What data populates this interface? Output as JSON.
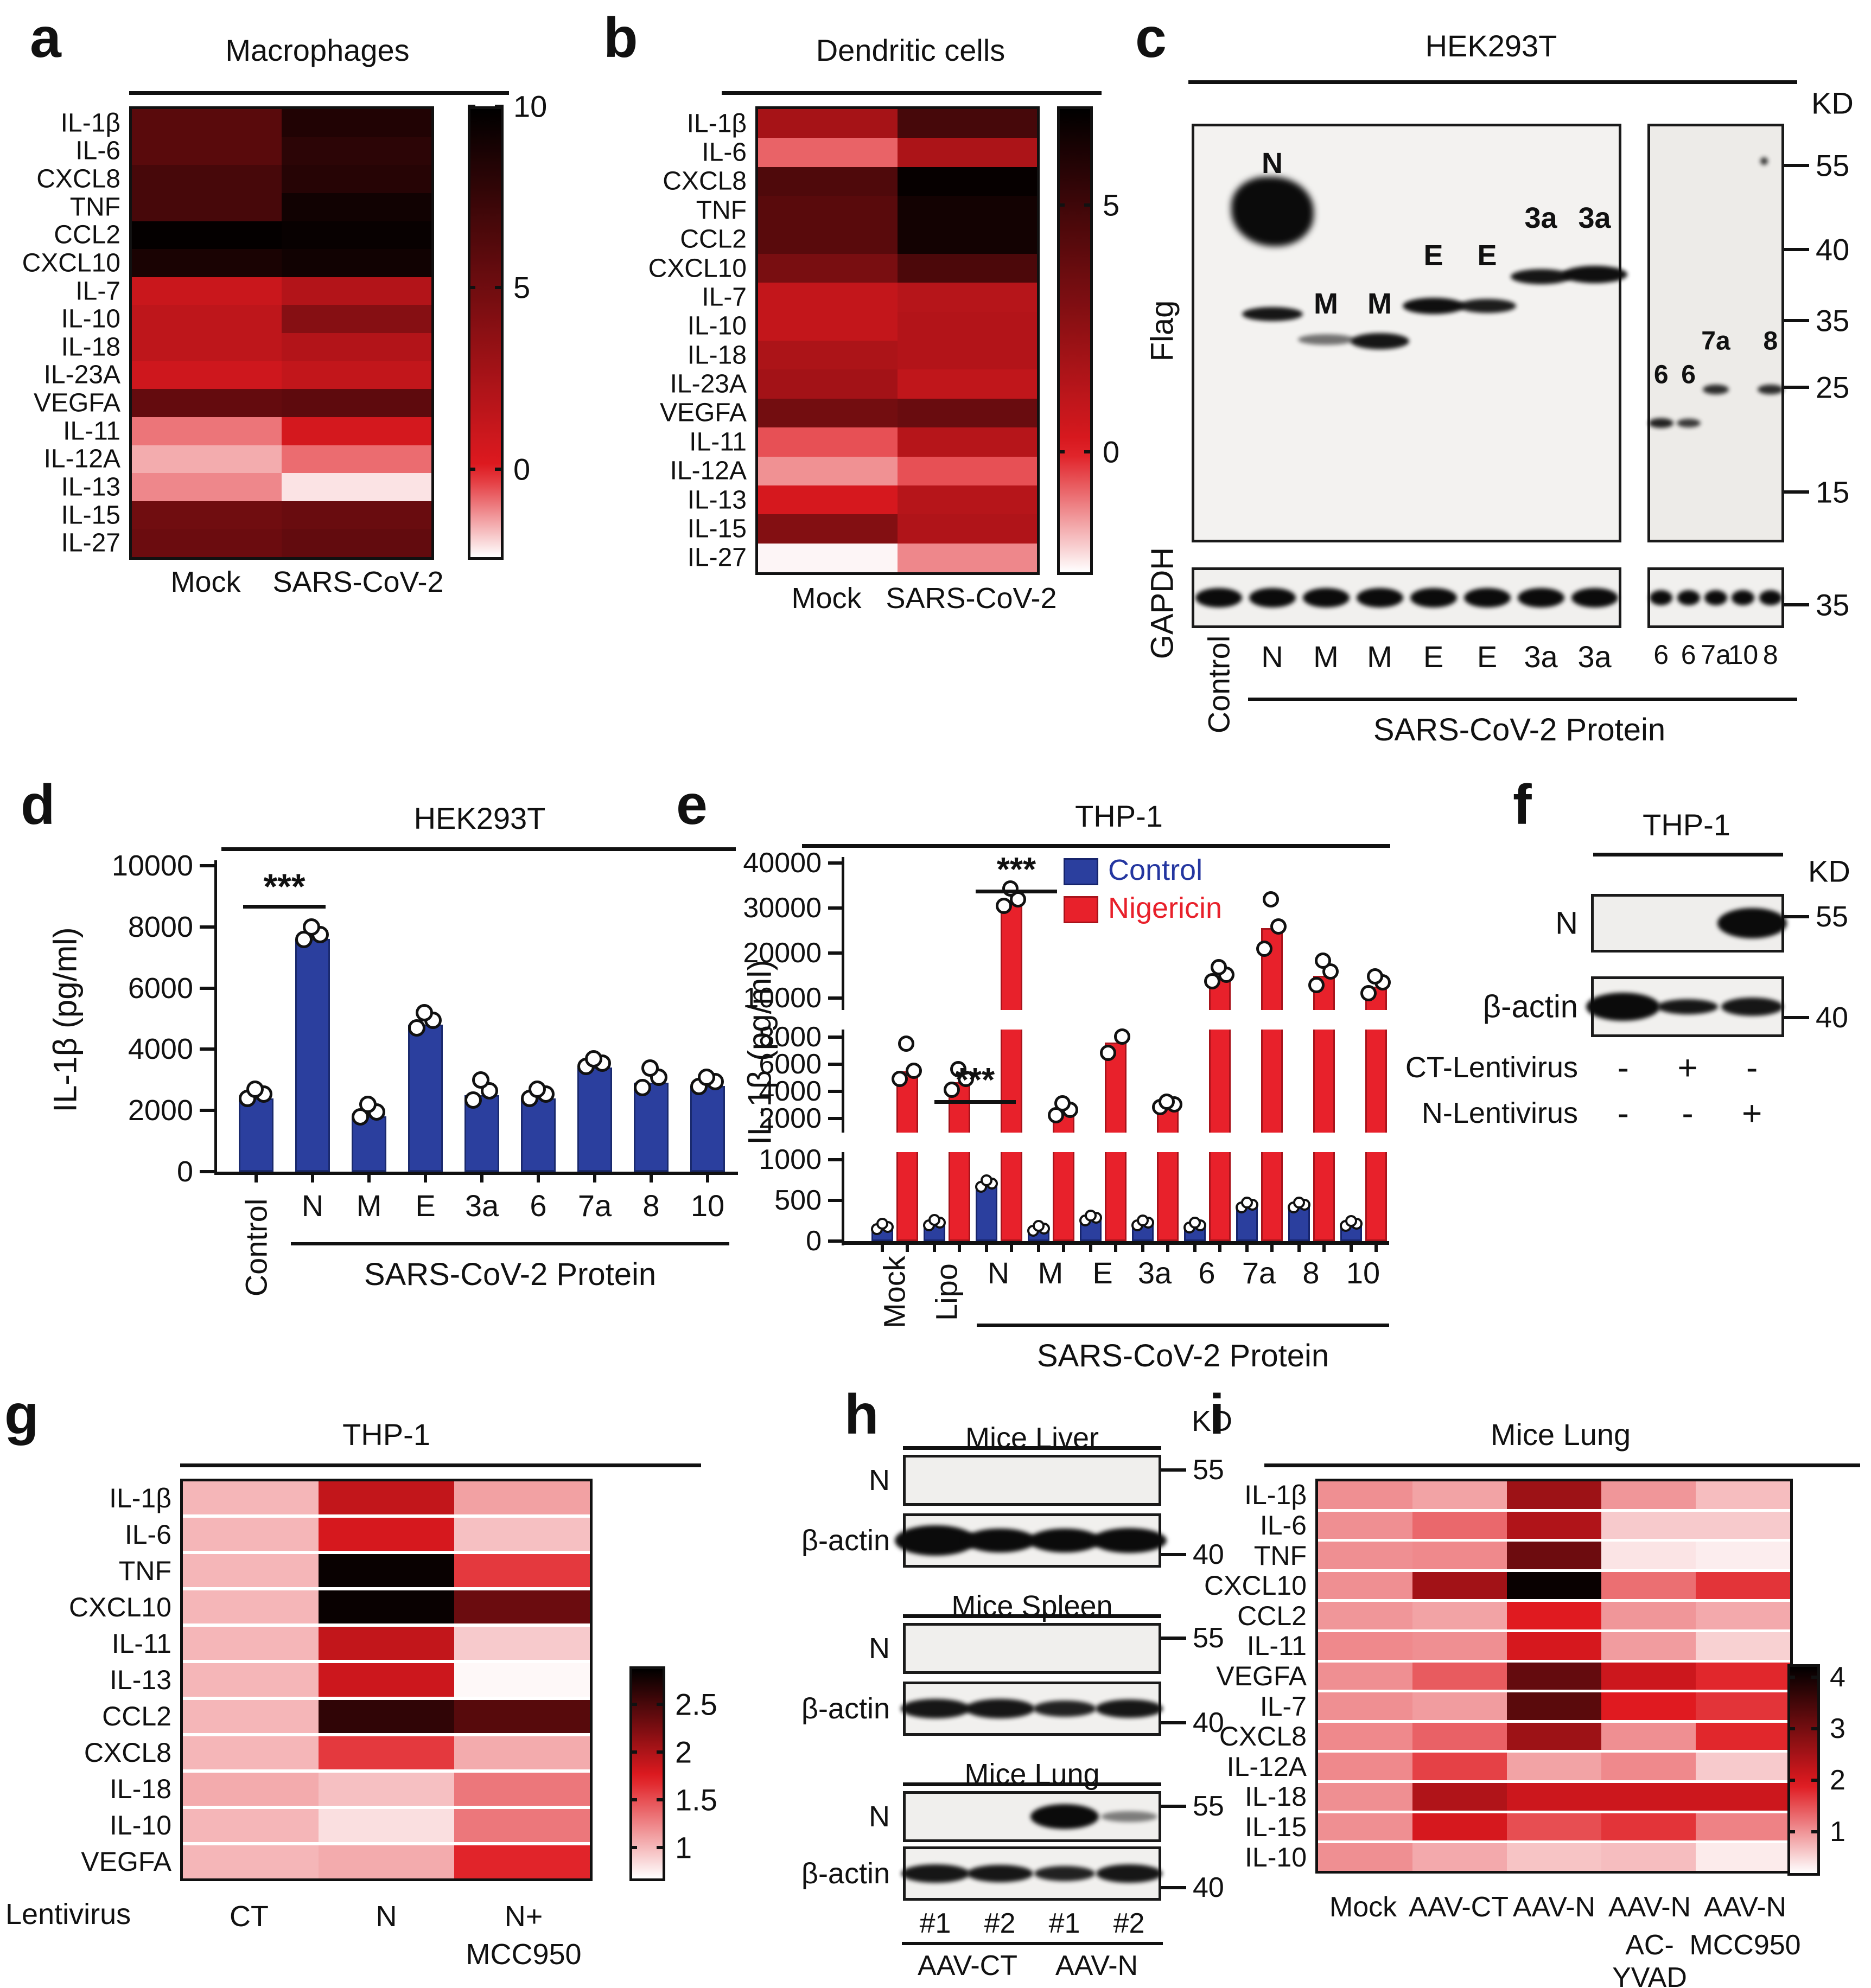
{
  "figure": {
    "type": "multi-panel scientific figure",
    "panels": [
      "a",
      "b",
      "c",
      "d",
      "e",
      "f",
      "g",
      "h",
      "i"
    ]
  },
  "panels": {
    "a": {
      "letter": "a",
      "title": "Macrophages",
      "col_labels": [
        "Mock",
        "SARS-CoV-2"
      ]
    },
    "b": {
      "letter": "b",
      "title": "Dendritic cells",
      "col_labels": [
        "Mock",
        "SARS-CoV-2"
      ]
    },
    "c": {
      "letter": "c",
      "title": "HEK293T",
      "kd_label": "KD",
      "antibody_top": "Flag",
      "antibody_bottom": "GAPDH",
      "flag_markers": [
        {
          "label": "55",
          "f": 0.1
        },
        {
          "label": "40",
          "f": 0.3
        },
        {
          "label": "35",
          "f": 0.47
        },
        {
          "label": "25",
          "f": 0.63
        },
        {
          "label": "15",
          "f": 0.88
        }
      ],
      "gapdh_marker": {
        "label": "35",
        "f": 0.62
      },
      "lanes_left": [
        "Control",
        "N",
        "M",
        "M",
        "E",
        "E",
        "3a",
        "3a"
      ],
      "lanes_right": [
        "6",
        "6",
        "7a",
        "10",
        "8"
      ],
      "inblot_left": [
        {
          "lane": 1,
          "text": "N",
          "f": 0.095
        },
        {
          "lane": 2,
          "text": "M",
          "f": 0.43
        },
        {
          "lane": 3,
          "text": "M",
          "f": 0.43
        },
        {
          "lane": 4,
          "text": "E",
          "f": 0.315
        },
        {
          "lane": 5,
          "text": "E",
          "f": 0.315
        },
        {
          "lane": 6,
          "text": "3a",
          "f": 0.225
        },
        {
          "lane": 7,
          "text": "3a",
          "f": 0.225
        }
      ],
      "bands_left": [
        {
          "lane": 1,
          "f": 0.21,
          "w": 152,
          "h": 128,
          "op": 1,
          "blob": true
        },
        {
          "lane": 1,
          "f": 0.455,
          "w": 112,
          "h": 26,
          "op": 0.95
        },
        {
          "lane": 2,
          "f": 0.515,
          "w": 104,
          "h": 20,
          "op": 0.55
        },
        {
          "lane": 3,
          "f": 0.52,
          "w": 108,
          "h": 30,
          "op": 0.95
        },
        {
          "lane": 4,
          "f": 0.435,
          "w": 114,
          "h": 30,
          "op": 0.98
        },
        {
          "lane": 5,
          "f": 0.435,
          "w": 106,
          "h": 26,
          "op": 0.92
        },
        {
          "lane": 6,
          "f": 0.365,
          "w": 112,
          "h": 28,
          "op": 0.95
        },
        {
          "lane": 7,
          "f": 0.36,
          "w": 120,
          "h": 32,
          "op": 0.98
        }
      ],
      "inblot_right": [
        {
          "lane": 0,
          "text": "6",
          "f": 0.6
        },
        {
          "lane": 1,
          "text": "6",
          "f": 0.6
        },
        {
          "lane": 2,
          "text": "7a",
          "f": 0.52
        },
        {
          "lane": 4,
          "text": "8",
          "f": 0.52
        }
      ],
      "bands_right": [
        {
          "lane": 0,
          "f": 0.715,
          "w": 46,
          "h": 18,
          "op": 0.9
        },
        {
          "lane": 1,
          "f": 0.715,
          "w": 44,
          "h": 16,
          "op": 0.8
        },
        {
          "lane": 2,
          "f": 0.635,
          "w": 48,
          "h": 18,
          "op": 0.85
        },
        {
          "lane": 4,
          "f": 0.635,
          "w": 48,
          "h": 18,
          "op": 0.85
        }
      ],
      "group_label": "SARS-CoV-2 Protein"
    },
    "f": {
      "letter": "f",
      "title": "THP-1",
      "kd_label": "KD",
      "blot1_label": "N",
      "blot2_label": "β-actin",
      "marker1": "55",
      "marker2": "40",
      "rows": [
        {
          "label": "CT-Lentivirus",
          "signs": [
            "-",
            "+",
            "-"
          ]
        },
        {
          "label": "N-Lentivirus",
          "signs": [
            "-",
            "-",
            "+"
          ]
        }
      ]
    },
    "h": {
      "letter": "h",
      "kd_label": "KD",
      "groups": [
        {
          "title": "Mice Liver",
          "n_label": "N",
          "actin_label": "β-actin",
          "marker_n": "55",
          "marker_actin": "40",
          "n_bands": [],
          "actin_bands": [
            {
              "lane": 0,
              "w": 150,
              "h": 56,
              "op": 1
            },
            {
              "lane": 1,
              "w": 132,
              "h": 44,
              "op": 1
            },
            {
              "lane": 2,
              "w": 132,
              "h": 44,
              "op": 1
            },
            {
              "lane": 3,
              "w": 138,
              "h": 46,
              "op": 1
            }
          ]
        },
        {
          "title": "Mice Spleen",
          "n_label": "N",
          "actin_label": "β-actin",
          "marker_n": "55",
          "marker_actin": "40",
          "n_bands": [],
          "actin_bands": [
            {
              "lane": 0,
              "w": 128,
              "h": 36,
              "op": 0.95
            },
            {
              "lane": 1,
              "w": 128,
              "h": 36,
              "op": 0.95
            },
            {
              "lane": 2,
              "w": 116,
              "h": 30,
              "op": 0.9
            },
            {
              "lane": 3,
              "w": 124,
              "h": 34,
              "op": 0.95
            }
          ]
        },
        {
          "title": "Mice Lung",
          "n_label": "N",
          "actin_label": "β-actin",
          "marker_n": "55",
          "marker_actin": "40",
          "n_bands": [
            {
              "lane": 2,
              "w": 126,
              "h": 46,
              "op": 1
            },
            {
              "lane": 3,
              "w": 104,
              "h": 20,
              "op": 0.5
            }
          ],
          "actin_bands": [
            {
              "lane": 0,
              "w": 126,
              "h": 34,
              "op": 0.95
            },
            {
              "lane": 1,
              "w": 122,
              "h": 32,
              "op": 0.95
            },
            {
              "lane": 2,
              "w": 112,
              "h": 28,
              "op": 0.9
            },
            {
              "lane": 3,
              "w": 122,
              "h": 34,
              "op": 0.95
            }
          ]
        }
      ],
      "lane_labels": [
        "#1",
        "#2",
        "#1",
        "#2"
      ],
      "group_labels": [
        "AAV-CT",
        "AAV-N"
      ]
    },
    "g": {
      "letter": "g",
      "title": "THP-1",
      "axis_label": "Lentivirus",
      "col_labels": [
        "CT",
        "N",
        "N+"
      ],
      "col_sublabels": [
        "",
        "",
        "MCC950"
      ]
    },
    "i": {
      "letter": "i",
      "title": "Mice Lung",
      "col_labels": [
        "Mock",
        "AAV-CT",
        "AAV-N",
        "AAV-N",
        "AAV-N"
      ],
      "col_sublabels": [
        "",
        "",
        "",
        "AC-YVAD",
        "MCC950"
      ]
    }
  },
  "chart_data": [
    {
      "id": "heatmap_a",
      "type": "heatmap",
      "title": "Macrophages",
      "rows": [
        "IL-1β",
        "IL-6",
        "CXCL8",
        "TNF",
        "CCL2",
        "CXCL10",
        "IL-7",
        "IL-10",
        "IL-18",
        "IL-23A",
        "VEGFA",
        "IL-11",
        "IL-12A",
        "IL-13",
        "IL-15",
        "IL-27"
      ],
      "columns": [
        "Mock",
        "SARS-CoV-2"
      ],
      "values": [
        [
          6.0,
          8.5
        ],
        [
          6.0,
          8.0
        ],
        [
          6.8,
          8.3
        ],
        [
          6.8,
          9.2
        ],
        [
          9.8,
          9.6
        ],
        [
          8.8,
          9.2
        ],
        [
          1.0,
          2.0
        ],
        [
          1.5,
          4.0
        ],
        [
          1.5,
          2.0
        ],
        [
          0.8,
          1.3
        ],
        [
          5.5,
          5.8
        ],
        [
          -1.0,
          0.5
        ],
        [
          -1.6,
          -0.9
        ],
        [
          -1.2,
          -2.2
        ],
        [
          5.0,
          5.3
        ],
        [
          5.2,
          5.6
        ]
      ],
      "scale": {
        "min": -2.5,
        "red": 0,
        "max": 10
      },
      "colorbar_ticks": [
        10,
        5,
        0
      ],
      "legend_position": "right"
    },
    {
      "id": "heatmap_b",
      "type": "heatmap",
      "title": "Dendritic cells",
      "rows": [
        "IL-1β",
        "IL-6",
        "CXCL8",
        "TNF",
        "CCL2",
        "CXCL10",
        "IL-7",
        "IL-10",
        "IL-18",
        "IL-23A",
        "VEGFA",
        "IL-11",
        "IL-12A",
        "IL-13",
        "IL-15",
        "IL-27"
      ],
      "columns": [
        "Mock",
        "SARS-CoV-2"
      ],
      "values": [
        [
          1.8,
          4.8
        ],
        [
          -0.8,
          1.6
        ],
        [
          4.5,
          6.8
        ],
        [
          4.2,
          6.4
        ],
        [
          4.2,
          6.4
        ],
        [
          3.2,
          4.6
        ],
        [
          0.9,
          1.3
        ],
        [
          0.9,
          1.4
        ],
        [
          1.6,
          1.4
        ],
        [
          1.9,
          1.0
        ],
        [
          3.4,
          3.7
        ],
        [
          -0.6,
          1.3
        ],
        [
          -1.3,
          -0.6
        ],
        [
          0.3,
          1.3
        ],
        [
          2.9,
          1.5
        ],
        [
          -2.4,
          -1.2
        ]
      ],
      "scale": {
        "min": -2.5,
        "red": 0,
        "max": 7
      },
      "colorbar_ticks": [
        5,
        0
      ],
      "legend_position": "right"
    },
    {
      "id": "bar_d",
      "type": "bar",
      "title": "HEK293T",
      "ylabel": "IL-1β (pg/ml)",
      "ylim": [
        0,
        10000
      ],
      "yticks": [
        0,
        2000,
        4000,
        6000,
        8000,
        10000
      ],
      "categories": [
        "Control",
        "N",
        "M",
        "E",
        "3a",
        "6",
        "7a",
        "8",
        "10"
      ],
      "values": [
        2400,
        7600,
        1800,
        4800,
        2500,
        2400,
        3400,
        2900,
        2800
      ],
      "dots": [
        [
          2250,
          2400,
          2550
        ],
        [
          7450,
          7600,
          7850
        ],
        [
          1650,
          1800,
          2050
        ],
        [
          4550,
          4800,
          5050
        ],
        [
          2200,
          2500,
          2850
        ],
        [
          2250,
          2400,
          2550
        ],
        [
          3300,
          3400,
          3550
        ],
        [
          2600,
          2950,
          3250
        ],
        [
          2650,
          2800,
          2950
        ]
      ],
      "bar_color": "#2b3f9e",
      "significance": {
        "from": "Control",
        "to": "N",
        "label": "***"
      },
      "group_label": "SARS-CoV-2 Protein"
    },
    {
      "id": "bar_e",
      "type": "bar",
      "title": "THP-1",
      "ylabel": "IL-1β (pg/ml)",
      "categories": [
        "Mock",
        "Lipo",
        "N",
        "M",
        "E",
        "3a",
        "6",
        "7a",
        "8",
        "10"
      ],
      "series": [
        {
          "name": "Control",
          "color": "#2b3f9e",
          "values": [
            150,
            200,
            680,
            130,
            260,
            200,
            170,
            420,
            420,
            190
          ],
          "dots": [
            [
              120,
              150,
              185
            ],
            [
              170,
              200,
              235
            ],
            [
              640,
              680,
              720
            ],
            [
              100,
              130,
              160
            ],
            [
              230,
              260,
              290
            ],
            [
              170,
              200,
              230
            ],
            [
              140,
              170,
              200
            ],
            [
              390,
              420,
              450
            ],
            [
              390,
              420,
              450
            ],
            [
              160,
              190,
              220
            ]
          ]
        },
        {
          "name": "Nigericin",
          "color": "#e8212b",
          "values": [
            5500,
            4700,
            31500,
            2400,
            7600,
            2800,
            15000,
            25500,
            15000,
            12500
          ],
          "dots": [
            [
              4700,
              5300,
              7300
            ],
            [
              3900,
              4700,
              5400
            ],
            [
              29800,
              31200,
              33600
            ],
            [
              2000,
              2400,
              2900
            ],
            [
              6600,
              7800
            ],
            [
              2600,
              2800,
              3000
            ],
            [
              13000,
              14500,
              16200
            ],
            [
              20300,
              25200,
              31200
            ],
            [
              12200,
              15200,
              17600
            ],
            [
              10400,
              12800,
              14100
            ]
          ]
        }
      ],
      "yticks_segments": [
        [
          0,
          500,
          1000
        ],
        [
          2000,
          4000,
          6000,
          8000
        ],
        [
          10000,
          20000,
          30000,
          40000
        ]
      ],
      "axis_breaks": [
        [
          1000,
          2000
        ],
        [
          8000,
          10000
        ]
      ],
      "significance": [
        {
          "label": "***",
          "span": "Lipo-N",
          "level": "lower"
        },
        {
          "label": "***",
          "span": "N control-nigericin",
          "level": "upper"
        }
      ],
      "group_label": "SARS-CoV-2 Protein",
      "legend_position": "top"
    },
    {
      "id": "heatmap_g",
      "type": "heatmap",
      "title": "THP-1",
      "rows": [
        "IL-1β",
        "IL-6",
        "TNF",
        "CXCL10",
        "IL-11",
        "IL-13",
        "CCL2",
        "CXCL8",
        "IL-18",
        "IL-10",
        "VEGFA"
      ],
      "columns": [
        "CT",
        "N",
        "N+MCC950"
      ],
      "values": [
        [
          1.0,
          1.9,
          1.1
        ],
        [
          1.0,
          1.8,
          0.95
        ],
        [
          1.0,
          2.85,
          1.6
        ],
        [
          1.0,
          2.85,
          2.35
        ],
        [
          1.0,
          1.9,
          0.9
        ],
        [
          1.0,
          1.85,
          0.68
        ],
        [
          1.0,
          2.65,
          2.45
        ],
        [
          1.0,
          1.6,
          1.05
        ],
        [
          1.05,
          0.95,
          1.3
        ],
        [
          1.0,
          0.8,
          1.3
        ],
        [
          1.0,
          1.05,
          1.7
        ]
      ],
      "scale": {
        "min": 0.65,
        "red": 1.75,
        "max": 2.9
      },
      "colorbar_ticks": [
        2.5,
        2.0,
        1.5,
        1.0
      ],
      "legend_position": "right"
    },
    {
      "id": "heatmap_i",
      "type": "heatmap",
      "title": "Mice Lung",
      "rows": [
        "IL-1β",
        "IL-6",
        "TNF",
        "CXCL10",
        "CCL2",
        "IL-11",
        "VEGFA",
        "IL-7",
        "CXCL8",
        "IL-12A",
        "IL-18",
        "IL-15",
        "IL-10"
      ],
      "columns": [
        "Mock",
        "AAV-CT",
        "AAV-N",
        "AAV-N AC-YVAD",
        "AAV-N MCC950"
      ],
      "values": [
        [
          1.0,
          0.85,
          2.6,
          0.95,
          0.65
        ],
        [
          1.0,
          1.3,
          2.4,
          0.55,
          0.55
        ],
        [
          1.0,
          1.05,
          3.1,
          0.35,
          0.28
        ],
        [
          1.0,
          2.55,
          4.15,
          1.25,
          1.7
        ],
        [
          0.95,
          0.85,
          1.9,
          0.95,
          0.8
        ],
        [
          1.05,
          1.0,
          2.0,
          0.9,
          0.5
        ],
        [
          1.0,
          1.4,
          3.2,
          2.1,
          1.8
        ],
        [
          1.0,
          0.9,
          3.3,
          1.9,
          1.7
        ],
        [
          1.05,
          1.35,
          2.6,
          1.0,
          1.8
        ],
        [
          1.05,
          1.6,
          0.85,
          1.05,
          0.55
        ],
        [
          1.0,
          2.4,
          2.1,
          2.1,
          2.1
        ],
        [
          1.0,
          2.0,
          1.5,
          1.7,
          1.1
        ],
        [
          1.0,
          0.8,
          0.6,
          0.65,
          0.3
        ]
      ],
      "scale": {
        "min": 0.15,
        "red": 1.9,
        "max": 4.25
      },
      "colorbar_ticks": [
        4.0,
        3.0,
        2.0,
        1.0
      ],
      "legend_position": "right"
    }
  ]
}
